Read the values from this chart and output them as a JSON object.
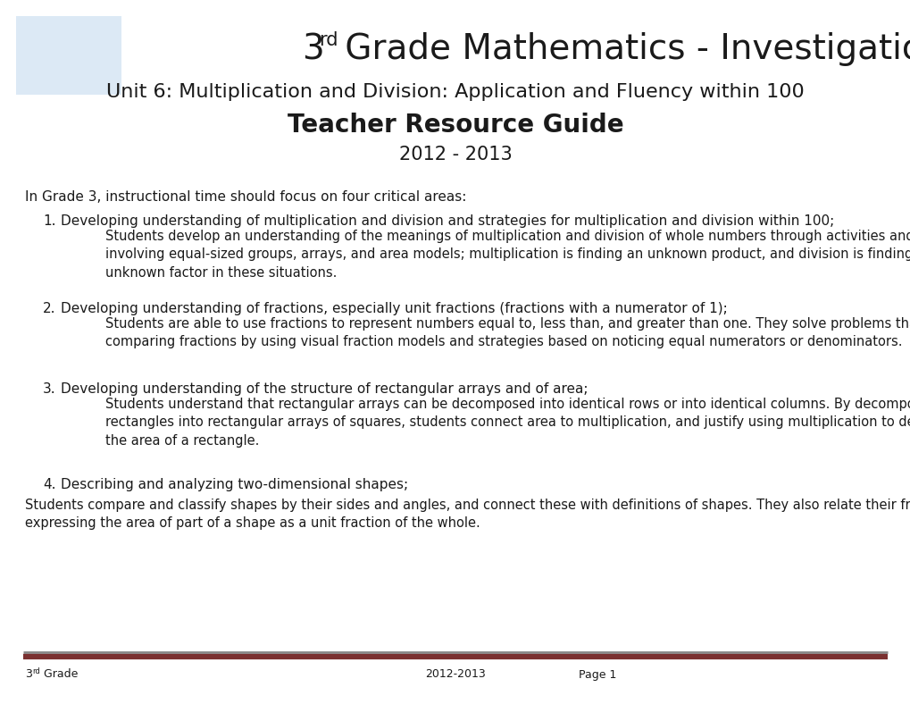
{
  "bg_color": "#ffffff",
  "box_color": "#dce9f5",
  "subtitle1": "Unit 6: Multiplication and Division: Application and Fluency within 100",
  "subtitle2": "Teacher Resource Guide",
  "subtitle3": "2012 - 2013",
  "intro": "In Grade 3, instructional time should focus on four critical areas:",
  "items": [
    {
      "num": "1.",
      "heading": "Developing understanding of multiplication and division and strategies for multiplication and division within 100;",
      "detail": "Students develop an understanding of the meanings of multiplication and division of whole numbers through activities and problems\ninvolving equal-sized groups, arrays, and area models; multiplication is finding an unknown product, and division is finding an\nunknown factor in these situations."
    },
    {
      "num": "2.",
      "heading": "Developing understanding of fractions, especially unit fractions (fractions with a numerator of 1);",
      "detail": "Students are able to use fractions to represent numbers equal to, less than, and greater than one. They solve problems that involve\ncomparing fractions by using visual fraction models and strategies based on noticing equal numerators or denominators."
    },
    {
      "num": "3.",
      "heading": "Developing understanding of the structure of rectangular arrays and of area;",
      "detail": "Students understand that rectangular arrays can be decomposed into identical rows or into identical columns. By decomposing\nrectangles into rectangular arrays of squares, students connect area to multiplication, and justify using multiplication to determine\nthe area of a rectangle."
    },
    {
      "num": "4.",
      "heading": "Describing and analyzing two-dimensional shapes;",
      "detail": ""
    }
  ],
  "closing": "Students compare and classify shapes by their sides and angles, and connect these with definitions of shapes. They also relate their fraction work to geometry by\nexpressing the area of part of a shape as a unit fraction of the whole.",
  "footer_center": "2012-2013",
  "footer_right": "Page 1",
  "footer_line_dark": "#7a3030",
  "footer_line_light": "#888888",
  "text_color": "#1a1a1a"
}
